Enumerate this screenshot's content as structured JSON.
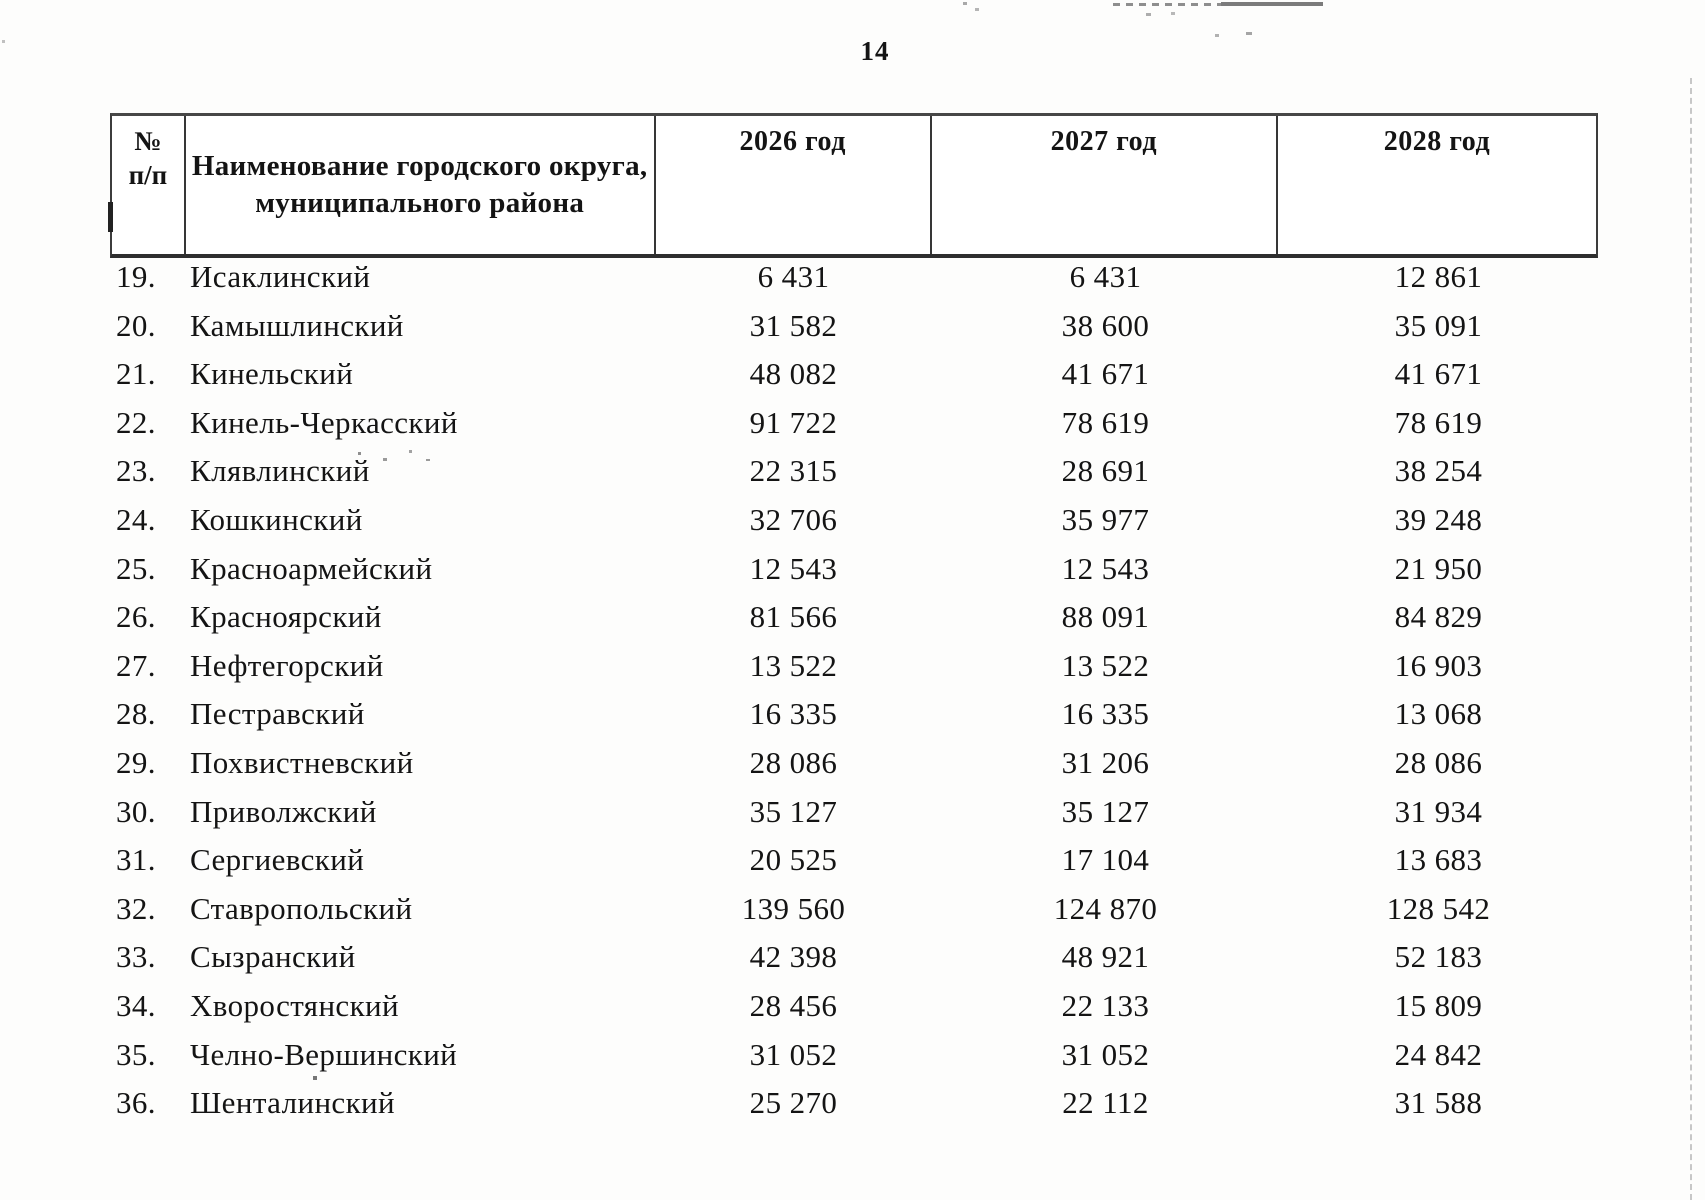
{
  "page": {
    "number": "14"
  },
  "table": {
    "header": {
      "num_line1": "№",
      "num_line2": "п/п",
      "name_line1": "Наименование городского округа,",
      "name_line2": "муниципального района",
      "year_2026": "2026 год",
      "year_2027": "2027 год",
      "year_2028": "2028 год"
    },
    "rows": [
      {
        "num": "19.",
        "name": "Исаклинский",
        "y2026": "6 431",
        "y2027": "6 431",
        "y2028": "12 861"
      },
      {
        "num": "20.",
        "name": "Камышлинский",
        "y2026": "31 582",
        "y2027": "38 600",
        "y2028": "35 091"
      },
      {
        "num": "21.",
        "name": "Кинельский",
        "y2026": "48 082",
        "y2027": "41 671",
        "y2028": "41 671"
      },
      {
        "num": "22.",
        "name": "Кинель-Черкасский",
        "y2026": "91 722",
        "y2027": "78 619",
        "y2028": "78 619"
      },
      {
        "num": "23.",
        "name": "Клявлинский",
        "y2026": "22 315",
        "y2027": "28 691",
        "y2028": "38 254"
      },
      {
        "num": "24.",
        "name": "Кошкинский",
        "y2026": "32 706",
        "y2027": "35 977",
        "y2028": "39 248"
      },
      {
        "num": "25.",
        "name": "Красноармейский",
        "y2026": "12 543",
        "y2027": "12 543",
        "y2028": "21 950"
      },
      {
        "num": "26.",
        "name": "Красноярский",
        "y2026": "81 566",
        "y2027": "88 091",
        "y2028": "84 829"
      },
      {
        "num": "27.",
        "name": "Нефтегорский",
        "y2026": "13 522",
        "y2027": "13 522",
        "y2028": "16 903"
      },
      {
        "num": "28.",
        "name": "Пестравский",
        "y2026": "16 335",
        "y2027": "16 335",
        "y2028": "13 068"
      },
      {
        "num": "29.",
        "name": "Похвистневский",
        "y2026": "28 086",
        "y2027": "31 206",
        "y2028": "28 086"
      },
      {
        "num": "30.",
        "name": "Приволжский",
        "y2026": "35 127",
        "y2027": "35 127",
        "y2028": "31 934"
      },
      {
        "num": "31.",
        "name": "Сергиевский",
        "y2026": "20 525",
        "y2027": "17 104",
        "y2028": "13 683"
      },
      {
        "num": "32.",
        "name": "Ставропольский",
        "y2026": "139 560",
        "y2027": "124 870",
        "y2028": "128 542"
      },
      {
        "num": "33.",
        "name": "Сызранский",
        "y2026": "42 398",
        "y2027": "48 921",
        "y2028": "52 183"
      },
      {
        "num": "34.",
        "name": "Хворостянский",
        "y2026": "28 456",
        "y2027": "22 133",
        "y2028": "15 809"
      },
      {
        "num": "35.",
        "name": "Челно-Вершинский",
        "y2026": "31 052",
        "y2027": "31 052",
        "y2028": "24 842"
      },
      {
        "num": "36.",
        "name": "Шенталинский",
        "y2026": "25 270",
        "y2027": "22 112",
        "y2028": "31 588"
      }
    ]
  }
}
